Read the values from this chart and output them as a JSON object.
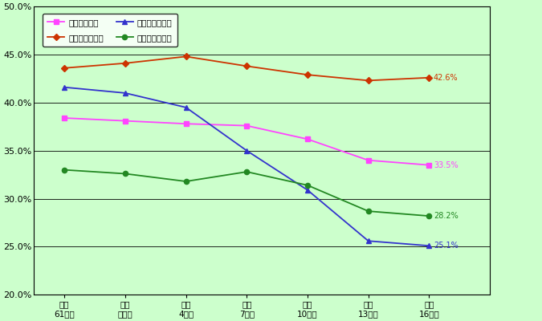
{
  "x_labels": [
    "昭和\n61年度",
    "平成\n元年度",
    "平成\n4年度",
    "平成\n7年度",
    "平成\n10年度",
    "平成\n13年度",
    "平成\n16年度"
  ],
  "x_positions": [
    0,
    1,
    2,
    3,
    4,
    5,
    6
  ],
  "series": [
    {
      "name": "大学全体・計",
      "color": "#FF44FF",
      "marker": "s",
      "linestyle": "-",
      "values": [
        38.4,
        38.1,
        37.8,
        37.6,
        36.2,
        34.0,
        33.5
      ],
      "end_label": "33.5%"
    },
    {
      "name": "大学全体・国立",
      "color": "#CC3300",
      "marker": "D",
      "linestyle": "-",
      "values": [
        43.6,
        44.1,
        44.8,
        43.8,
        42.9,
        42.3,
        42.6
      ],
      "end_label": "42.6%"
    },
    {
      "name": "大学全体・公立",
      "color": "#3333CC",
      "marker": "^",
      "linestyle": "-",
      "values": [
        41.6,
        41.0,
        39.5,
        35.0,
        30.9,
        25.6,
        25.1
      ],
      "end_label": "25.1%"
    },
    {
      "name": "大学全体・私立",
      "color": "#228822",
      "marker": "o",
      "linestyle": "-",
      "values": [
        33.0,
        32.6,
        31.8,
        32.8,
        31.4,
        28.7,
        28.2
      ],
      "end_label": "28.2%"
    }
  ],
  "ylim": [
    20.0,
    50.0
  ],
  "yticks": [
    20.0,
    25.0,
    30.0,
    35.0,
    40.0,
    45.0,
    50.0
  ],
  "background_color": "#CCFFCC",
  "grid_color": "#000000",
  "fig_width": 6.75,
  "fig_height": 4.0,
  "dpi": 100
}
